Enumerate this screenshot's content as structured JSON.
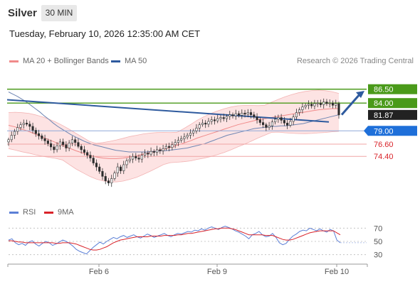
{
  "header": {
    "symbol": "Silver",
    "timeframe": "30 MIN",
    "datetime": "Tuesday, February 10, 2026 12:35:00 AM CET",
    "credit": "Research © 2026 Trading Central"
  },
  "legend": {
    "bollinger": {
      "label": "MA 20 + Bollinger Bands",
      "color": "#f08a8a"
    },
    "ma50": {
      "label": "MA 50",
      "color": "#2e5a9e"
    },
    "rsi": {
      "label": "RSI",
      "color": "#5b7fd6"
    },
    "rsi_ma": {
      "label": "9MA",
      "color": "#d9232a"
    }
  },
  "chart_data": [
    {
      "type": "candlestick",
      "title": "",
      "x_ticks": [
        "Feb 6",
        "Feb 9",
        "Feb 10"
      ],
      "y_range": [
        66.5,
        88.5
      ],
      "grid": false,
      "levels": [
        {
          "label": "86.50",
          "value": 86.5,
          "kind": "resistance",
          "color": "#4a9a1a"
        },
        {
          "label": "84.00",
          "value": 84.0,
          "kind": "resistance",
          "color": "#4a9a1a"
        },
        {
          "label": "81.87",
          "value": 81.87,
          "kind": "last-price",
          "color": "#222222"
        },
        {
          "label": "79.00",
          "value": 79.0,
          "kind": "pivot",
          "color": "#1e6fd9"
        },
        {
          "label": "76.60",
          "value": 76.6,
          "kind": "support",
          "color": "#d9232a"
        },
        {
          "label": "74.40",
          "value": 74.4,
          "kind": "support",
          "color": "#d9232a"
        }
      ],
      "close": [
        77.4,
        78.2,
        78.9,
        79.6,
        80.1,
        80.4,
        80.2,
        79.8,
        79.1,
        78.5,
        78.1,
        77.6,
        77.2,
        76.7,
        76.1,
        75.6,
        76.3,
        77.0,
        76.5,
        75.9,
        76.8,
        77.4,
        76.9,
        76.2,
        75.6,
        75.1,
        74.6,
        74.1,
        73.2,
        72.5,
        71.7,
        70.8,
        70.0,
        69.6,
        70.4,
        71.4,
        72.5,
        71.8,
        72.9,
        73.6,
        73.9,
        74.4,
        74.1,
        73.9,
        74.6,
        75.0,
        74.8,
        75.3,
        75.1,
        75.6,
        75.4,
        75.8,
        76.2,
        76.0,
        76.5,
        76.9,
        77.3,
        77.6,
        77.9,
        78.2,
        78.6,
        79.0,
        79.5,
        80.1,
        80.4,
        80.2,
        80.7,
        81.0,
        80.8,
        81.2,
        81.4,
        81.2,
        81.6,
        81.9,
        81.7,
        82.1,
        81.8,
        82.2,
        82.0,
        82.3,
        81.9,
        81.5,
        81.0,
        80.5,
        80.1,
        79.6,
        79.9,
        80.6,
        81.1,
        81.4,
        80.9,
        80.4,
        80.0,
        80.7,
        81.5,
        82.3,
        82.8,
        83.3,
        83.6,
        83.8,
        83.5,
        83.9,
        84.0,
        83.7,
        84.2,
        83.9,
        84.0,
        83.6,
        83.9,
        81.87
      ],
      "ma50": [
        86.0,
        85.6,
        85.2,
        84.7,
        84.2,
        83.6,
        83.0,
        82.4,
        81.7,
        81.1,
        80.4,
        79.8,
        79.3,
        78.8,
        78.3,
        77.9,
        77.5,
        77.1,
        76.8,
        76.5,
        76.3,
        76.1,
        75.9,
        75.7,
        75.5,
        75.4,
        75.3,
        75.2,
        75.2,
        75.2,
        75.2,
        75.2,
        75.3,
        75.3,
        75.4,
        75.4,
        75.5,
        75.6,
        75.7,
        75.8,
        75.9,
        76.1,
        76.3,
        76.5,
        76.7,
        77.0,
        77.3,
        77.6,
        77.9,
        78.2,
        78.4,
        78.6,
        78.8,
        79.0,
        79.2,
        79.4,
        79.5,
        79.6,
        79.7,
        79.8,
        79.8,
        79.9,
        79.9,
        80.0,
        80.1,
        80.2,
        80.3,
        80.5,
        80.7,
        80.9,
        81.1,
        81.3,
        81.5,
        81.7,
        81.9
      ],
      "ma20": [
        80.0,
        79.7,
        79.3,
        78.9,
        78.4,
        77.9,
        77.4,
        76.9,
        76.4,
        75.9,
        75.4,
        75.0,
        74.6,
        74.3,
        74.1,
        74.0,
        74.0,
        74.1,
        74.3,
        74.5,
        74.8,
        75.1,
        75.4,
        75.7,
        76.0,
        76.4,
        76.8,
        77.2,
        77.7,
        78.1,
        78.5,
        78.9,
        79.3,
        79.7,
        80.1,
        80.4,
        80.7,
        81.0,
        81.2,
        81.4,
        81.6,
        81.8,
        82.0,
        82.2,
        82.4,
        82.6,
        82.8,
        82.9,
        83.0,
        83.0
      ],
      "resistance_trendline": {
        "from": 84.6,
        "to": 80.6
      },
      "projection_arrow": {
        "from": 81.9,
        "to": 86.2
      }
    },
    {
      "type": "line",
      "title": "",
      "y_ticks": [
        70,
        50,
        30
      ],
      "y_range": [
        20,
        80
      ],
      "rsi": [
        52,
        54,
        48,
        45,
        47,
        44,
        49,
        51,
        46,
        43,
        47,
        50,
        48,
        44,
        46,
        49,
        52,
        50,
        47,
        43,
        38,
        35,
        33,
        31,
        36,
        41,
        45,
        49,
        46,
        50,
        53,
        56,
        54,
        57,
        59,
        56,
        58,
        60,
        57,
        55,
        58,
        61,
        59,
        56,
        58,
        60,
        62,
        59,
        57,
        60,
        62,
        61,
        63,
        65,
        64,
        67,
        66,
        69,
        67,
        70,
        72,
        70,
        68,
        71,
        73,
        71,
        69,
        66,
        64,
        61,
        58,
        54,
        60,
        62,
        65,
        60,
        57,
        58,
        62,
        56,
        48,
        45,
        47,
        53,
        58,
        61,
        65,
        67,
        66,
        70,
        68,
        66,
        69,
        66,
        64,
        68,
        66,
        52,
        48
      ],
      "rsi_ma": [
        51,
        51,
        50,
        49,
        49,
        48,
        48,
        48,
        48,
        48,
        48,
        48,
        48,
        48,
        47,
        47,
        48,
        48,
        48,
        47,
        46,
        44,
        42,
        40,
        38,
        37,
        37,
        38,
        40,
        42,
        45,
        48,
        50,
        52,
        53,
        54,
        55,
        56,
        57,
        57,
        57,
        57,
        58,
        58,
        58,
        58,
        59,
        59,
        59,
        59,
        60,
        60,
        61,
        62,
        62,
        63,
        64,
        65,
        66,
        67,
        68,
        69,
        69,
        70,
        70,
        70,
        69,
        68,
        66,
        64,
        62,
        60,
        60,
        60,
        60,
        60,
        59,
        59,
        59,
        57,
        55,
        53,
        52,
        52,
        53,
        55,
        57,
        59,
        61,
        63,
        64,
        65,
        66,
        66,
        66,
        66,
        66,
        63,
        60
      ]
    }
  ]
}
